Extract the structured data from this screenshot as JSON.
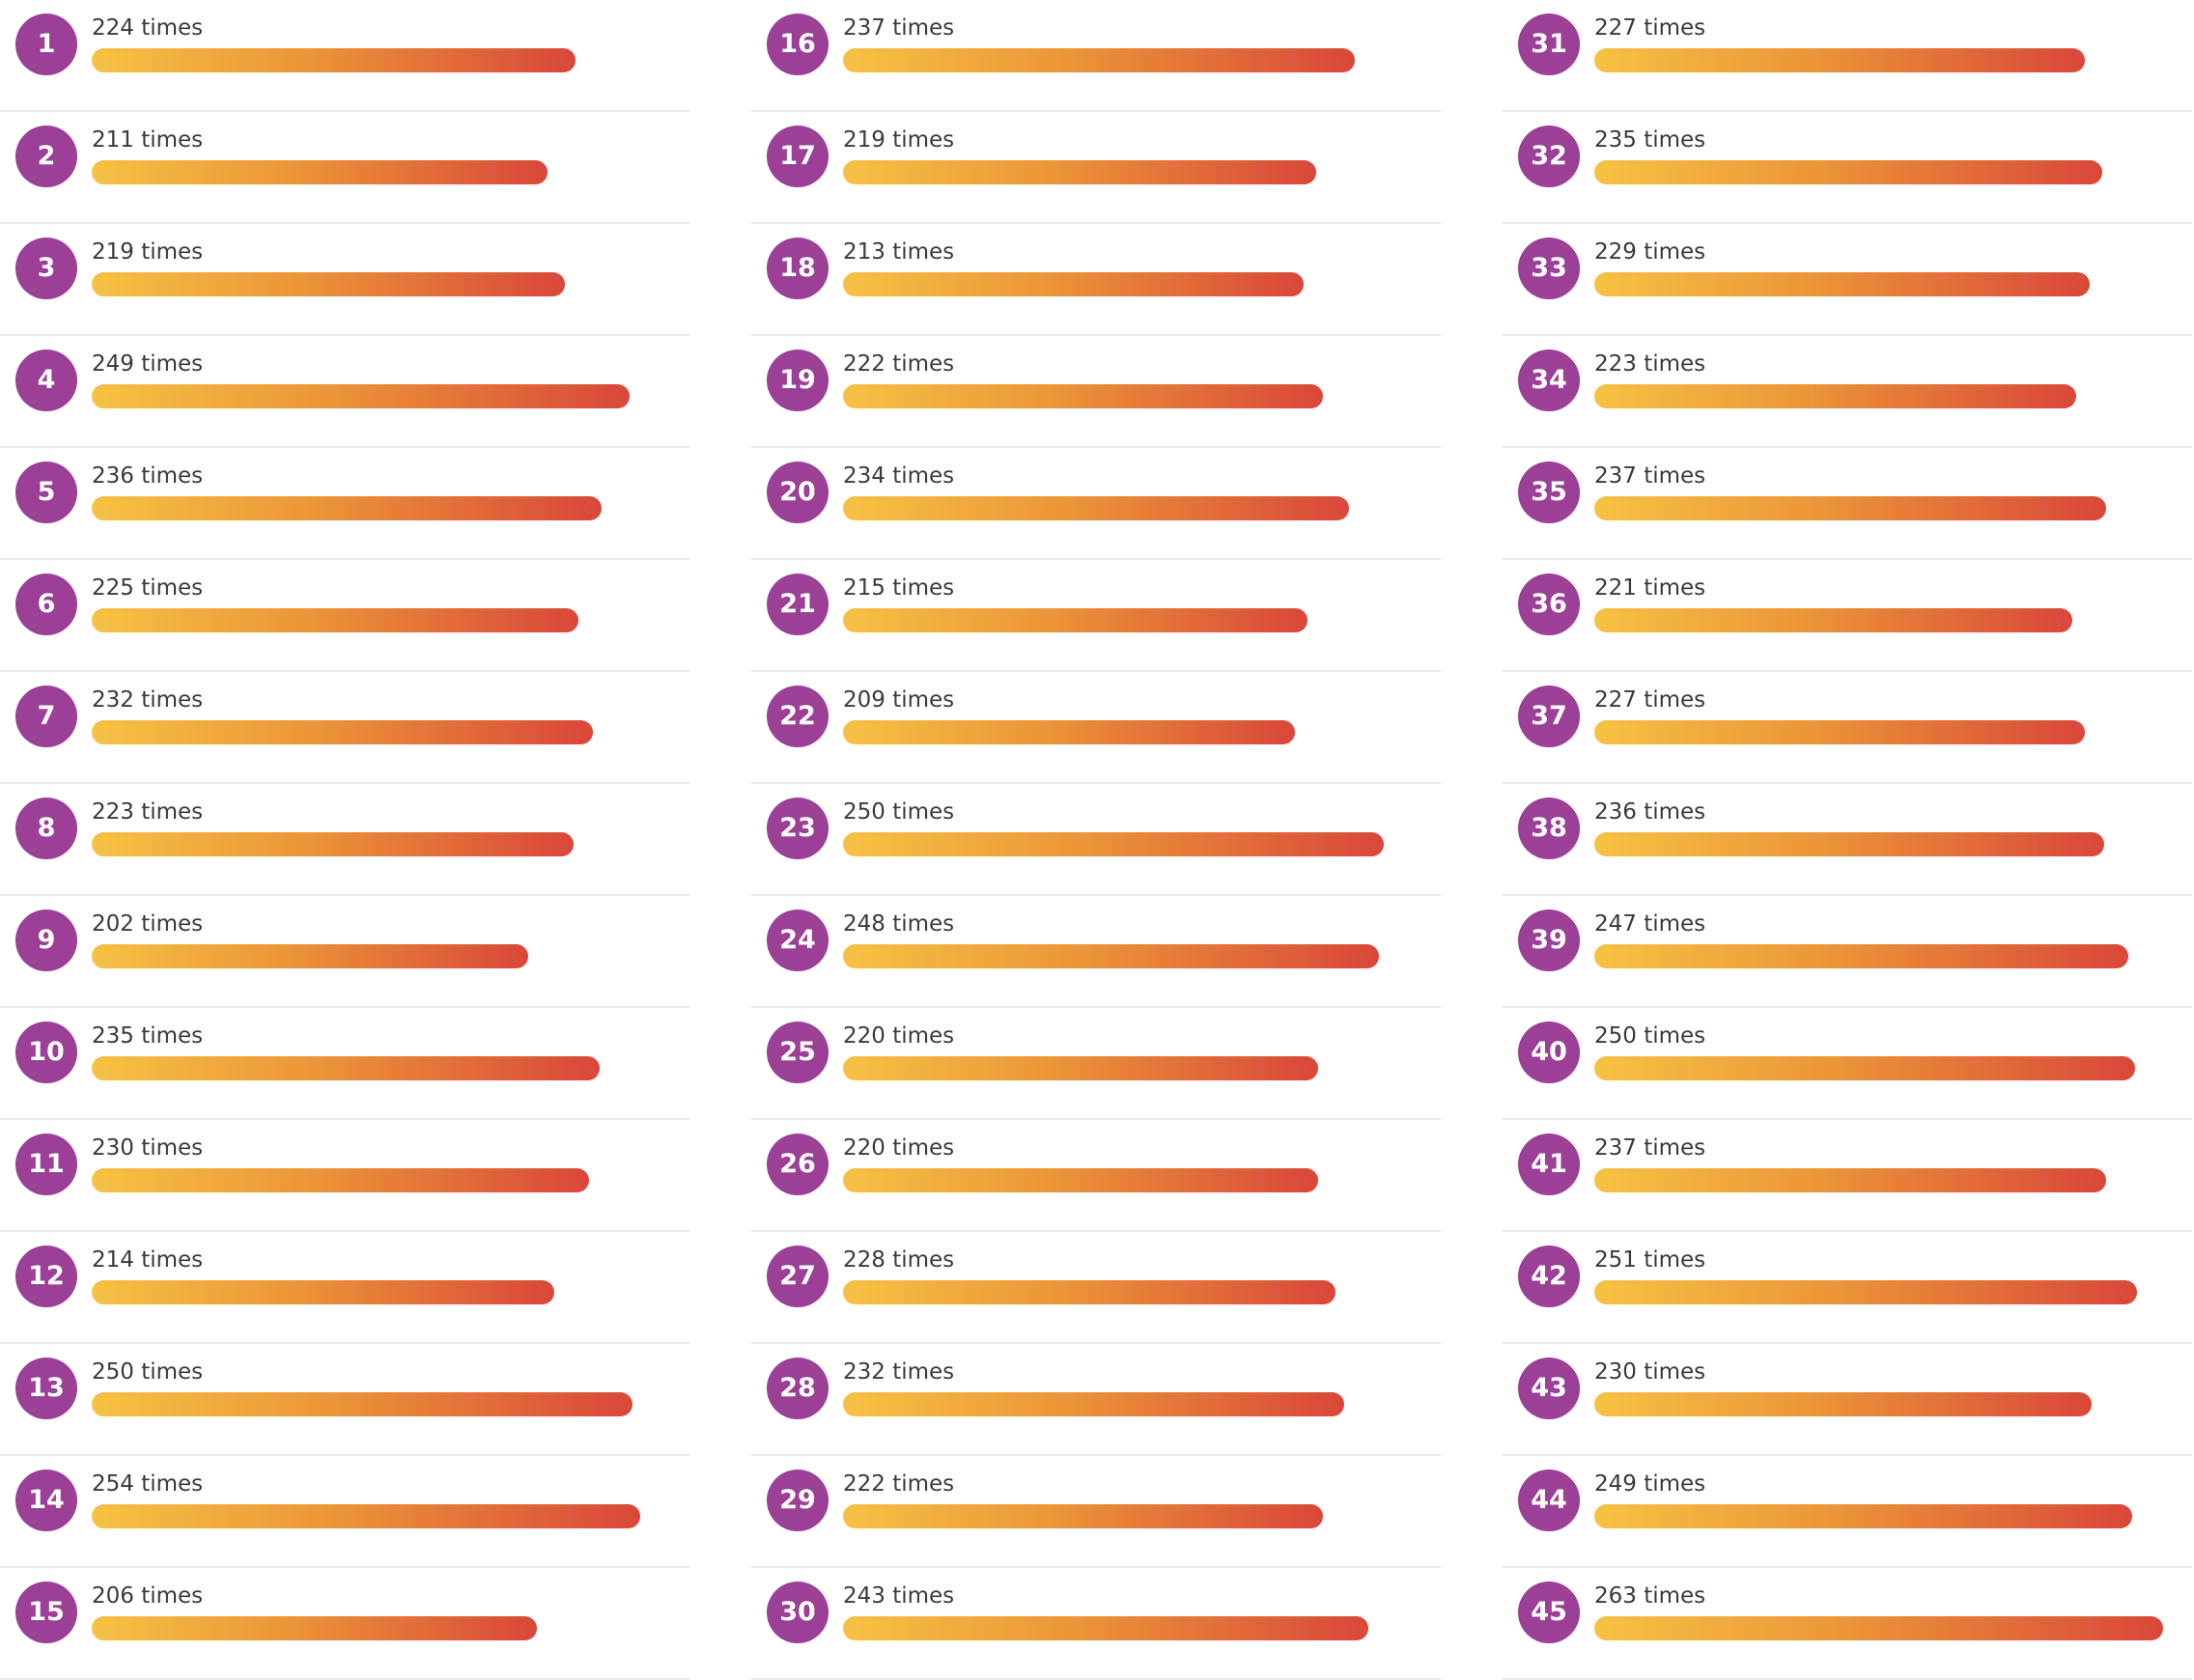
{
  "colors": {
    "ball": "#9b3f97",
    "bar_start": "#f6c243",
    "bar_mid": "#eb9438",
    "bar_end": "#d9473a",
    "divider": "#e9e9e9",
    "text": "#3a3a3a"
  },
  "chart_data": {
    "type": "bar",
    "orientation": "horizontal",
    "unit_suffix": "times",
    "categories": [
      "1",
      "2",
      "3",
      "4",
      "5",
      "6",
      "7",
      "8",
      "9",
      "10",
      "11",
      "12",
      "13",
      "14",
      "15",
      "16",
      "17",
      "18",
      "19",
      "20",
      "21",
      "22",
      "23",
      "24",
      "25",
      "26",
      "27",
      "28",
      "29",
      "30",
      "31",
      "32",
      "33",
      "34",
      "35",
      "36",
      "37",
      "38",
      "39",
      "40",
      "41",
      "42",
      "43",
      "44",
      "45"
    ],
    "values": [
      224,
      211,
      219,
      249,
      236,
      225,
      232,
      223,
      202,
      235,
      230,
      214,
      250,
      254,
      206,
      237,
      219,
      213,
      222,
      234,
      215,
      209,
      250,
      248,
      220,
      220,
      228,
      232,
      222,
      243,
      227,
      235,
      229,
      223,
      237,
      221,
      227,
      236,
      247,
      250,
      237,
      251,
      230,
      249,
      263
    ],
    "labels": [
      "224 times",
      "211 times",
      "219 times",
      "249 times",
      "236 times",
      "225 times",
      "232 times",
      "223 times",
      "202 times",
      "235 times",
      "230 times",
      "214 times",
      "250 times",
      "254 times",
      "206 times",
      "237 times",
      "219 times",
      "213 times",
      "222 times",
      "234 times",
      "215 times",
      "209 times",
      "250 times",
      "248 times",
      "220 times",
      "220 times",
      "228 times",
      "232 times",
      "222 times",
      "243 times",
      "227 times",
      "235 times",
      "229 times",
      "223 times",
      "237 times",
      "221 times",
      "227 times",
      "236 times",
      "247 times",
      "250 times",
      "237 times",
      "251 times",
      "230 times",
      "249 times",
      "263 times"
    ]
  }
}
